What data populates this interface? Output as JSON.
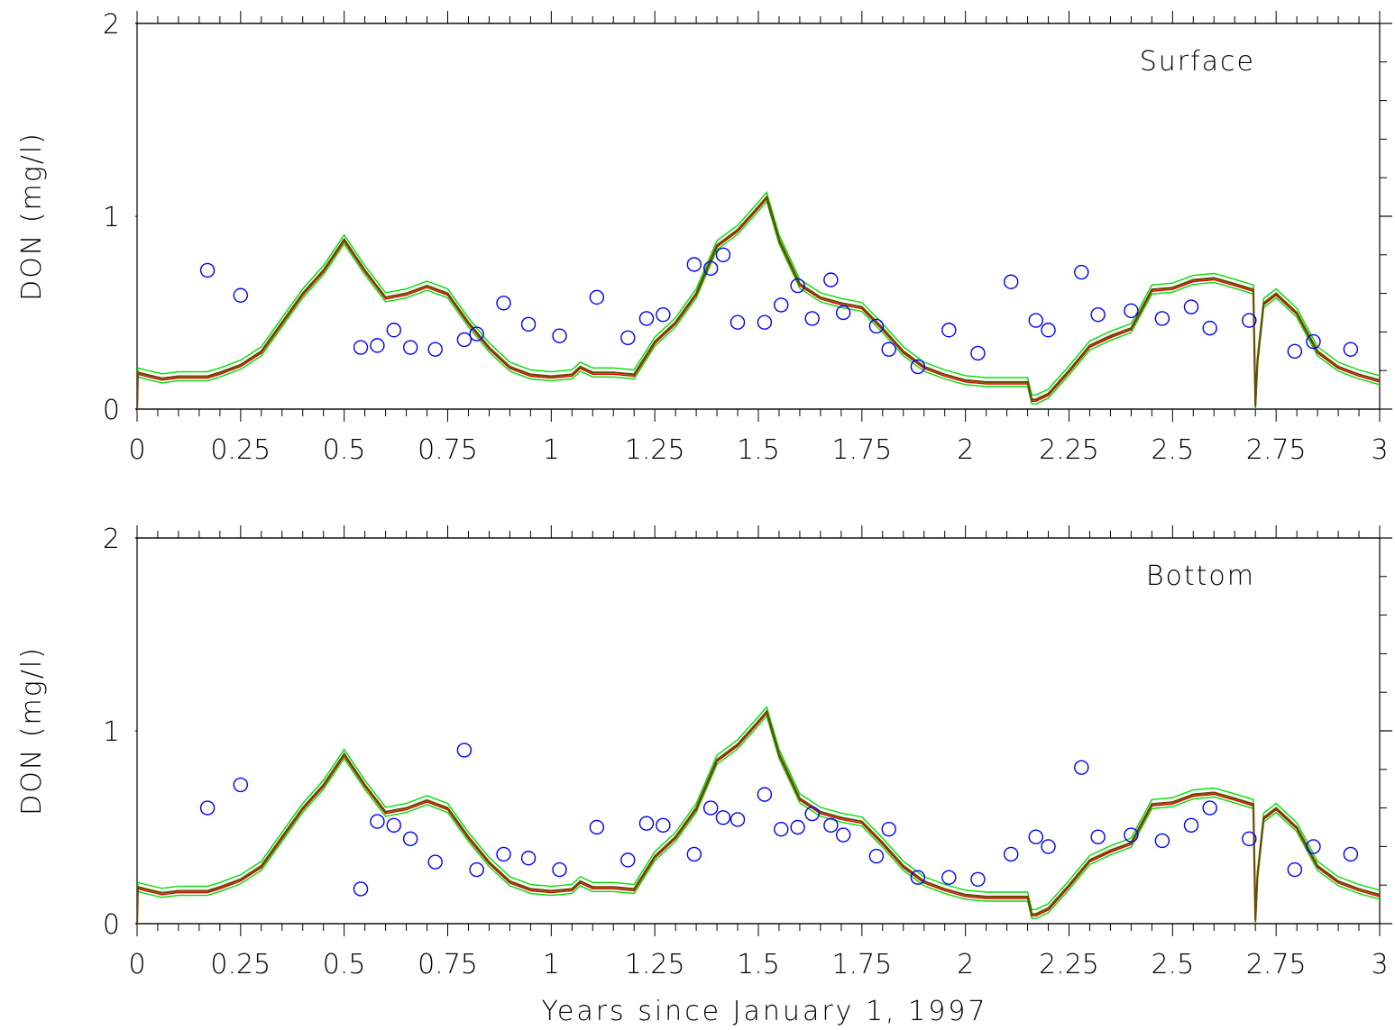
{
  "figure": {
    "xlabel": "Years since January 1, 1997"
  },
  "colors": {
    "model_band": "#00e000",
    "model_mean": "#e00000",
    "model_overlap": "#6b4a00",
    "observations": "#0000ff",
    "axes": "#000000"
  },
  "chart_data": [
    {
      "type": "line",
      "title": "",
      "panel_label": "Surface",
      "legend_position": "top-right",
      "xlabel": "",
      "ylabel": "DON (mg/l)",
      "xlim": [
        0,
        3
      ],
      "ylim": [
        0,
        2
      ],
      "grid": false,
      "x_ticks": [
        "0",
        "0.25",
        "0.5",
        "0.75",
        "1",
        "1.25",
        "1.5",
        "1.75",
        "2",
        "2.25",
        "2.5",
        "2.75",
        "3"
      ],
      "y_ticks": [
        "0",
        "1",
        "2"
      ],
      "series": [
        {
          "style": "line",
          "color": "model",
          "x": [
            0,
            0.002,
            0.02,
            0.06,
            0.1,
            0.13,
            0.17,
            0.2,
            0.25,
            0.3,
            0.35,
            0.4,
            0.45,
            0.5,
            0.55,
            0.6,
            0.65,
            0.7,
            0.75,
            0.8,
            0.85,
            0.9,
            0.95,
            1.0,
            1.05,
            1.07,
            1.1,
            1.15,
            1.2,
            1.25,
            1.3,
            1.35,
            1.4,
            1.45,
            1.5,
            1.52,
            1.55,
            1.6,
            1.65,
            1.7,
            1.75,
            1.8,
            1.85,
            1.9,
            1.95,
            2.0,
            2.05,
            2.1,
            2.15,
            2.16,
            2.17,
            2.2,
            2.25,
            2.3,
            2.35,
            2.4,
            2.45,
            2.5,
            2.55,
            2.6,
            2.65,
            2.695,
            2.7,
            2.705,
            2.72,
            2.75,
            2.8,
            2.85,
            2.9,
            2.95,
            3.0
          ],
          "y": [
            0.0,
            0.19,
            0.18,
            0.16,
            0.17,
            0.17,
            0.17,
            0.19,
            0.23,
            0.3,
            0.45,
            0.6,
            0.72,
            0.88,
            0.72,
            0.58,
            0.6,
            0.64,
            0.6,
            0.45,
            0.32,
            0.22,
            0.18,
            0.17,
            0.18,
            0.22,
            0.19,
            0.19,
            0.18,
            0.35,
            0.45,
            0.6,
            0.85,
            0.93,
            1.05,
            1.1,
            0.88,
            0.65,
            0.58,
            0.55,
            0.53,
            0.42,
            0.3,
            0.22,
            0.18,
            0.15,
            0.14,
            0.14,
            0.14,
            0.05,
            0.05,
            0.08,
            0.2,
            0.33,
            0.38,
            0.42,
            0.62,
            0.63,
            0.67,
            0.68,
            0.65,
            0.62,
            0.02,
            0.25,
            0.55,
            0.6,
            0.5,
            0.3,
            0.22,
            0.18,
            0.15
          ]
        },
        {
          "style": "scatter",
          "color": "observations",
          "x": [
            0.17,
            0.25,
            0.54,
            0.58,
            0.62,
            0.66,
            0.72,
            0.79,
            0.82,
            0.885,
            0.945,
            1.02,
            1.11,
            1.185,
            1.23,
            1.27,
            1.345,
            1.385,
            1.415,
            1.45,
            1.515,
            1.555,
            1.595,
            1.63,
            1.675,
            1.705,
            1.785,
            1.815,
            1.885,
            1.96,
            2.03,
            2.11,
            2.17,
            2.2,
            2.28,
            2.32,
            2.4,
            2.475,
            2.545,
            2.59,
            2.685,
            2.795,
            2.84,
            2.93
          ],
          "y": [
            0.72,
            0.59,
            0.32,
            0.33,
            0.41,
            0.32,
            0.31,
            0.36,
            0.39,
            0.55,
            0.44,
            0.38,
            0.58,
            0.37,
            0.47,
            0.49,
            0.75,
            0.73,
            0.8,
            0.45,
            0.45,
            0.54,
            0.64,
            0.47,
            0.67,
            0.5,
            0.43,
            0.31,
            0.22,
            0.41,
            0.29,
            0.66,
            0.46,
            0.41,
            0.71,
            0.49,
            0.51,
            0.47,
            0.53,
            0.42,
            0.46,
            0.3,
            0.35,
            0.31
          ]
        }
      ]
    },
    {
      "type": "line",
      "title": "",
      "panel_label": "Bottom",
      "legend_position": "top-right",
      "xlabel": "Years since January 1, 1997",
      "ylabel": "DON (mg/l)",
      "xlim": [
        0,
        3
      ],
      "ylim": [
        0,
        2
      ],
      "grid": false,
      "x_ticks": [
        "0",
        "0.25",
        "0.5",
        "0.75",
        "1",
        "1.25",
        "1.5",
        "1.75",
        "2",
        "2.25",
        "2.5",
        "2.75",
        "3"
      ],
      "y_ticks": [
        "0",
        "1",
        "2"
      ],
      "series": [
        {
          "style": "line",
          "color": "model",
          "x": [
            0,
            0.002,
            0.02,
            0.06,
            0.1,
            0.13,
            0.17,
            0.2,
            0.25,
            0.3,
            0.35,
            0.4,
            0.45,
            0.5,
            0.55,
            0.6,
            0.65,
            0.7,
            0.75,
            0.8,
            0.85,
            0.9,
            0.95,
            1.0,
            1.05,
            1.07,
            1.1,
            1.15,
            1.2,
            1.25,
            1.3,
            1.35,
            1.4,
            1.45,
            1.5,
            1.52,
            1.55,
            1.6,
            1.65,
            1.7,
            1.75,
            1.8,
            1.85,
            1.9,
            1.95,
            2.0,
            2.05,
            2.1,
            2.15,
            2.16,
            2.17,
            2.2,
            2.25,
            2.3,
            2.35,
            2.4,
            2.45,
            2.5,
            2.55,
            2.6,
            2.65,
            2.695,
            2.7,
            2.705,
            2.72,
            2.75,
            2.8,
            2.85,
            2.9,
            2.95,
            3.0
          ],
          "y": [
            0.0,
            0.19,
            0.18,
            0.16,
            0.17,
            0.17,
            0.17,
            0.19,
            0.23,
            0.3,
            0.45,
            0.6,
            0.72,
            0.88,
            0.72,
            0.58,
            0.6,
            0.64,
            0.6,
            0.45,
            0.32,
            0.22,
            0.18,
            0.17,
            0.18,
            0.22,
            0.19,
            0.19,
            0.18,
            0.35,
            0.45,
            0.6,
            0.85,
            0.93,
            1.05,
            1.1,
            0.88,
            0.65,
            0.58,
            0.55,
            0.53,
            0.42,
            0.3,
            0.22,
            0.18,
            0.15,
            0.14,
            0.14,
            0.14,
            0.05,
            0.05,
            0.08,
            0.2,
            0.33,
            0.38,
            0.42,
            0.62,
            0.63,
            0.67,
            0.68,
            0.65,
            0.62,
            0.02,
            0.25,
            0.55,
            0.6,
            0.5,
            0.3,
            0.22,
            0.18,
            0.15
          ]
        },
        {
          "style": "scatter",
          "color": "observations",
          "x": [
            0.17,
            0.25,
            0.54,
            0.58,
            0.62,
            0.66,
            0.72,
            0.79,
            0.82,
            0.885,
            0.945,
            1.02,
            1.11,
            1.185,
            1.23,
            1.27,
            1.345,
            1.385,
            1.415,
            1.45,
            1.515,
            1.555,
            1.595,
            1.63,
            1.675,
            1.705,
            1.785,
            1.815,
            1.885,
            1.96,
            2.03,
            2.11,
            2.17,
            2.2,
            2.28,
            2.32,
            2.4,
            2.475,
            2.545,
            2.59,
            2.685,
            2.795,
            2.84,
            2.93
          ],
          "y": [
            0.6,
            0.72,
            0.18,
            0.53,
            0.51,
            0.44,
            0.32,
            0.9,
            0.28,
            0.36,
            0.34,
            0.28,
            0.5,
            0.33,
            0.52,
            0.51,
            0.36,
            0.6,
            0.55,
            0.54,
            0.67,
            0.49,
            0.5,
            0.57,
            0.51,
            0.46,
            0.35,
            0.49,
            0.24,
            0.24,
            0.23,
            0.36,
            0.45,
            0.4,
            0.81,
            0.45,
            0.46,
            0.43,
            0.51,
            0.6,
            0.44,
            0.28,
            0.4,
            0.36
          ]
        }
      ]
    }
  ]
}
